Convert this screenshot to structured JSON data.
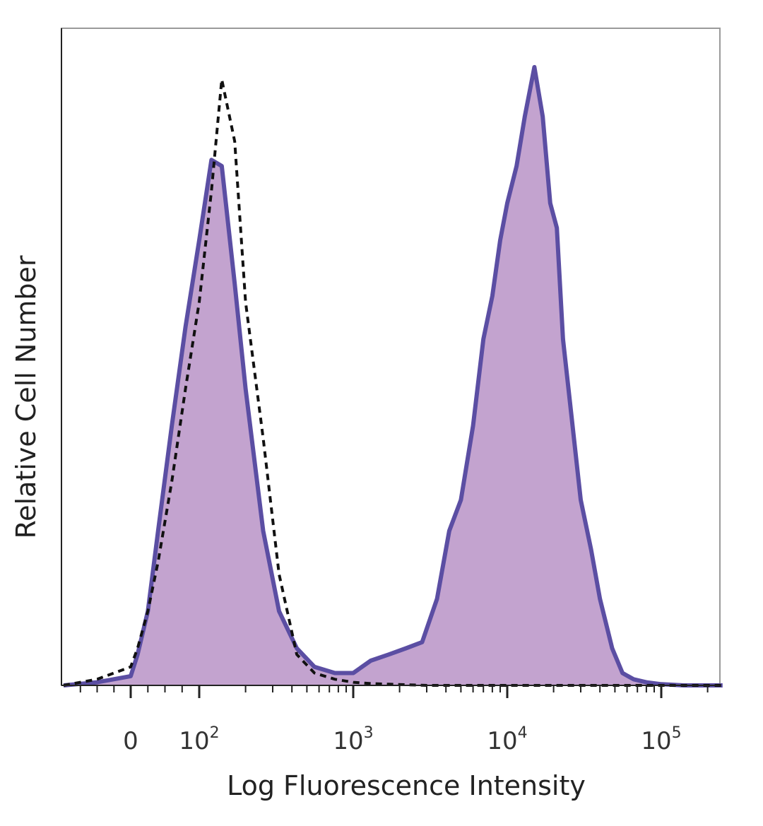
{
  "chart_data": {
    "type": "area",
    "title": "",
    "xlabel": "Log Fluorescence Intensity",
    "ylabel": "Relative Cell Number",
    "x_scale": "biexponential (log above 10^2)",
    "xlim": [
      -40,
      250000
    ],
    "ylim": [
      0,
      100
    ],
    "grid": false,
    "legend": "none",
    "x_tick_labels": [
      {
        "value": 0,
        "base": "0",
        "exp": ""
      },
      {
        "value": 100,
        "base": "10",
        "exp": "2"
      },
      {
        "value": 1000,
        "base": "10",
        "exp": "3"
      },
      {
        "value": 10000,
        "base": "10",
        "exp": "4"
      },
      {
        "value": 100000,
        "base": "10",
        "exp": "5"
      }
    ],
    "colors": {
      "stained_fill": "#c3a3cf",
      "stained_line": "#5b4ea3",
      "control_line": "#111111"
    },
    "series": [
      {
        "style": "solid-filled",
        "x": [
          -40,
          -20,
          0,
          10,
          25,
          40,
          60,
          80,
          100,
          120,
          140,
          170,
          200,
          260,
          330,
          430,
          560,
          760,
          1000,
          1300,
          1700,
          2200,
          2800,
          3500,
          4200,
          5000,
          6000,
          7000,
          8000,
          9000,
          10000,
          11500,
          13000,
          15000,
          17000,
          19000,
          21000,
          23000,
          26000,
          30000,
          35000,
          40000,
          48000,
          56000,
          66000,
          80000,
          100000,
          140000,
          250000
        ],
        "y": [
          0,
          0.5,
          1.5,
          5,
          12,
          25,
          42,
          58,
          72,
          85,
          84,
          65,
          48,
          25,
          12,
          6,
          3,
          2,
          2,
          4,
          5,
          6,
          7,
          14,
          25,
          30,
          42,
          56,
          63,
          72,
          78,
          84,
          92,
          100,
          92,
          78,
          74,
          56,
          44,
          30,
          22,
          14,
          6,
          2,
          1,
          0.5,
          0.2,
          0,
          0
        ]
      },
      {
        "style": "dashed-unfilled",
        "x": [
          -40,
          -20,
          0,
          10,
          25,
          40,
          60,
          80,
          100,
          120,
          140,
          170,
          200,
          260,
          330,
          430,
          560,
          760,
          1000,
          1300,
          1700,
          2200,
          3000,
          5000,
          10000,
          30000,
          100000,
          250000
        ],
        "y": [
          0,
          1,
          3,
          6,
          12,
          20,
          33,
          48,
          62,
          80,
          98,
          88,
          62,
          40,
          18,
          5,
          2,
          1,
          0.5,
          0.3,
          0.2,
          0.1,
          0,
          0,
          0,
          0,
          0,
          0
        ]
      }
    ]
  }
}
